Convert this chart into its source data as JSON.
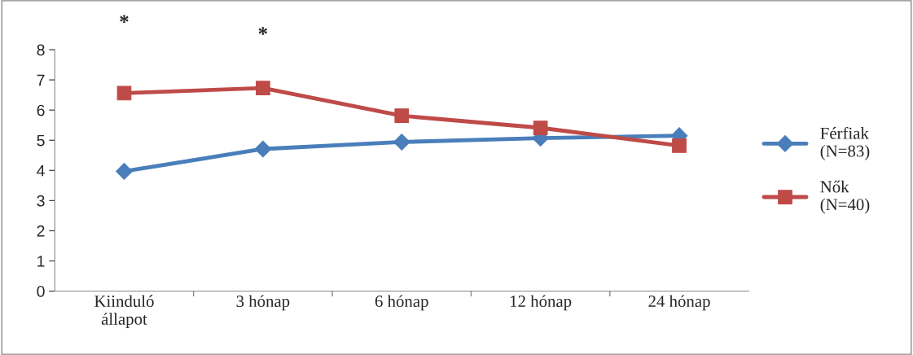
{
  "chart_data": {
    "type": "line",
    "categories": [
      "Kiinduló\nállapot",
      "3 hónap",
      "6 hónap",
      "12 hónap",
      "24 hónap"
    ],
    "series": [
      {
        "name": "Férfiak\n(N=83)",
        "color": "#4a7ebb",
        "marker": "diamond",
        "values": [
          3.97,
          4.71,
          4.94,
          5.07,
          5.15
        ]
      },
      {
        "name": "Nők\n(N=40)",
        "color": "#be4b48",
        "marker": "square",
        "values": [
          6.56,
          6.73,
          5.81,
          5.41,
          4.82
        ]
      }
    ],
    "ylim": [
      0,
      8
    ],
    "yticks": [
      0,
      1,
      2,
      3,
      4,
      5,
      6,
      7,
      8
    ],
    "grid": false,
    "legend": "right",
    "annotations": [
      "*",
      "*"
    ]
  }
}
